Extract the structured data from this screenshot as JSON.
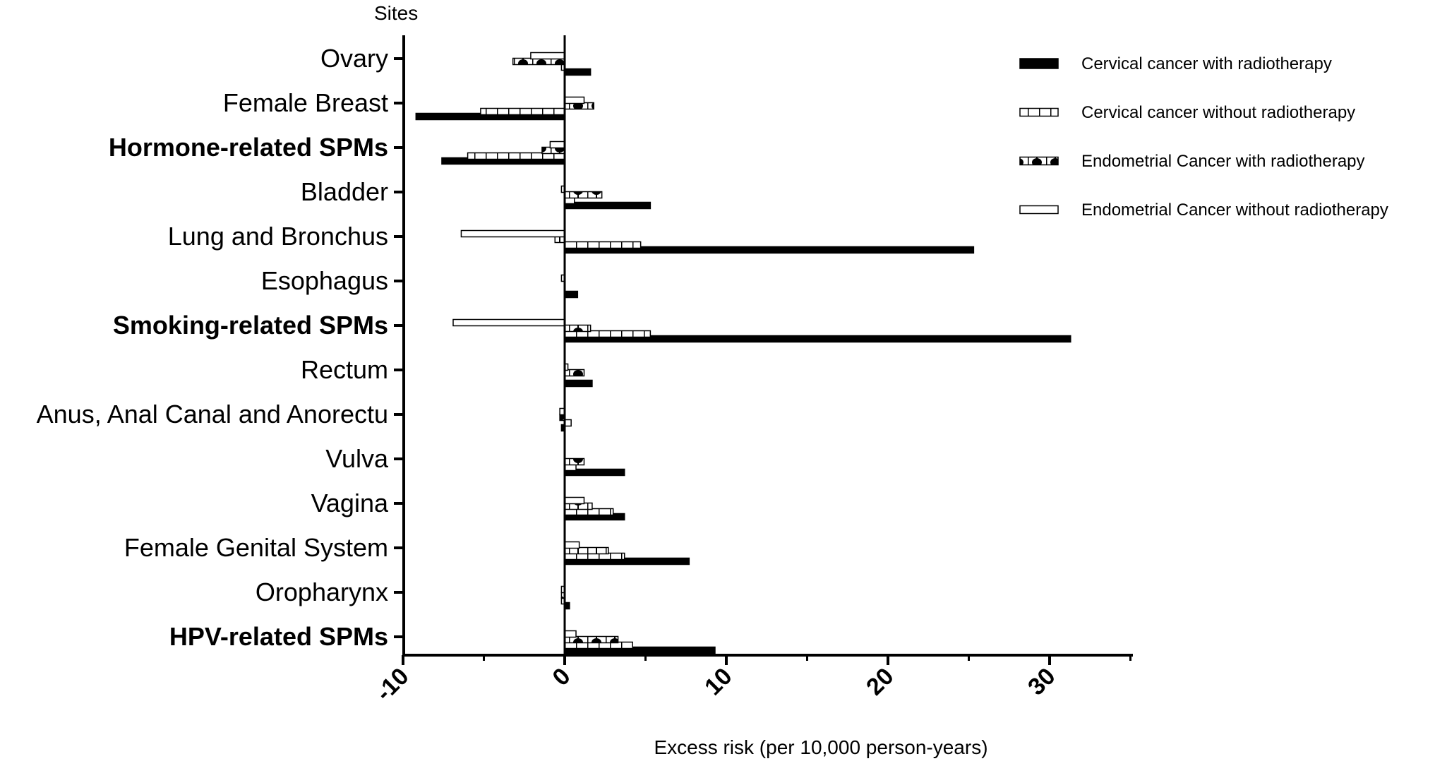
{
  "chart_data": {
    "type": "bar",
    "orientation": "horizontal",
    "ylabel": "Sites",
    "xlabel": "Excess risk (per 10,000 person-years)",
    "xlim": [
      -10,
      35
    ],
    "xticks": [
      -10,
      0,
      10,
      20,
      30
    ],
    "grid": false,
    "legend_position": "top-right",
    "categories": [
      "Ovary",
      "Female Breast",
      "Hormone-related SPMs",
      "Bladder",
      "Lung and Bronchus",
      "Esophagus",
      "Smoking-related SPMs",
      "Rectum",
      "Anus, Anal Canal and Anorectu",
      "Vulva",
      "Vagina",
      "Female Genital System",
      "Oropharynx",
      "HPV-related SPMs"
    ],
    "bold_categories": [
      "Hormone-related SPMs",
      "Smoking-related SPMs",
      "HPV-related SPMs"
    ],
    "series": [
      {
        "name": "Cervical cancer with radiotherapy",
        "pattern": "solid",
        "color": "#000000",
        "values": [
          1.6,
          -9.2,
          -7.6,
          5.3,
          25.3,
          0.8,
          31.3,
          1.7,
          -0.2,
          3.7,
          3.7,
          7.7,
          0.3,
          9.3
        ]
      },
      {
        "name": "Cervical cancer without  radiotherapy",
        "pattern": "brick",
        "color": "#000000",
        "values": [
          -0.2,
          -5.2,
          -6.0,
          0.6,
          4.7,
          0.0,
          5.3,
          0.0,
          0.4,
          0.7,
          3.0,
          3.7,
          -0.2,
          4.2
        ]
      },
      {
        "name": "Endometrial Cancer with radiotherapy",
        "pattern": "dotted-brick",
        "color": "#000000",
        "values": [
          -3.2,
          1.8,
          -1.4,
          2.3,
          -0.6,
          0.0,
          1.6,
          1.2,
          -0.3,
          1.2,
          1.7,
          2.7,
          -0.2,
          3.3
        ]
      },
      {
        "name": "Endometrial Cancer without  radiotherapy",
        "pattern": "open",
        "color": "#000000",
        "values": [
          -2.1,
          1.2,
          -0.9,
          -0.2,
          -6.4,
          -0.2,
          -6.9,
          0.2,
          -0.3,
          0.0,
          1.2,
          0.9,
          -0.2,
          0.7
        ]
      }
    ]
  }
}
